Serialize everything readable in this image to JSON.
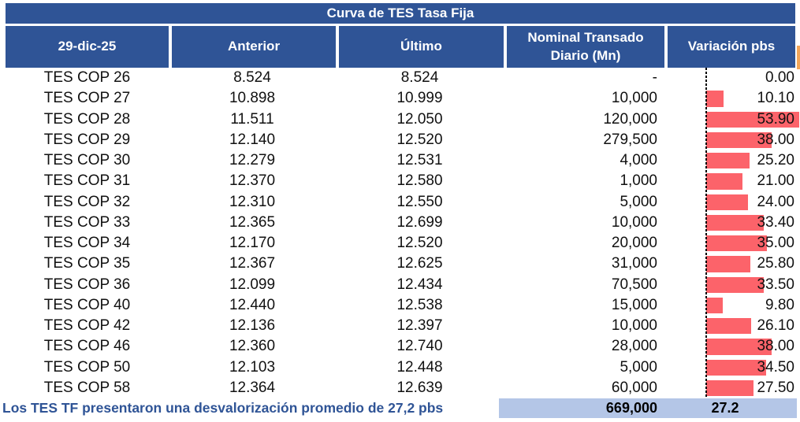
{
  "title": "Curva de TES Tasa Fija",
  "header": {
    "date": "29-dic-25",
    "anterior": "Anterior",
    "ultimo": "Último",
    "nominal_line1": "Nominal Transado",
    "nominal_line2": "Diario (Mn)",
    "variacion": "Variación pbs"
  },
  "rows": [
    {
      "label": "TES COP 26",
      "anterior": "8.524",
      "ultimo": "8.524",
      "nominal": "-",
      "variacion": "0.00",
      "variacion_value": 0.0
    },
    {
      "label": "TES COP 27",
      "anterior": "10.898",
      "ultimo": "10.999",
      "nominal": "10,000",
      "variacion": "10.10",
      "variacion_value": 10.1
    },
    {
      "label": "TES COP 28",
      "anterior": "11.511",
      "ultimo": "12.050",
      "nominal": "120,000",
      "variacion": "53.90",
      "variacion_value": 53.9
    },
    {
      "label": "TES COP 29",
      "anterior": "12.140",
      "ultimo": "12.520",
      "nominal": "279,500",
      "variacion": "38.00",
      "variacion_value": 38.0
    },
    {
      "label": "TES COP 30",
      "anterior": "12.279",
      "ultimo": "12.531",
      "nominal": "4,000",
      "variacion": "25.20",
      "variacion_value": 25.2
    },
    {
      "label": "TES COP 31",
      "anterior": "12.370",
      "ultimo": "12.580",
      "nominal": "1,000",
      "variacion": "21.00",
      "variacion_value": 21.0
    },
    {
      "label": "TES COP 32",
      "anterior": "12.310",
      "ultimo": "12.550",
      "nominal": "5,000",
      "variacion": "24.00",
      "variacion_value": 24.0
    },
    {
      "label": "TES COP 33",
      "anterior": "12.365",
      "ultimo": "12.699",
      "nominal": "10,000",
      "variacion": "33.40",
      "variacion_value": 33.4
    },
    {
      "label": "TES COP 34",
      "anterior": "12.170",
      "ultimo": "12.520",
      "nominal": "20,000",
      "variacion": "35.00",
      "variacion_value": 35.0
    },
    {
      "label": "TES COP 35",
      "anterior": "12.367",
      "ultimo": "12.625",
      "nominal": "31,000",
      "variacion": "25.80",
      "variacion_value": 25.8
    },
    {
      "label": "TES COP 36",
      "anterior": "12.099",
      "ultimo": "12.434",
      "nominal": "70,500",
      "variacion": "33.50",
      "variacion_value": 33.5
    },
    {
      "label": "TES COP 40",
      "anterior": "12.440",
      "ultimo": "12.538",
      "nominal": "15,000",
      "variacion": "9.80",
      "variacion_value": 9.8
    },
    {
      "label": "TES COP 42",
      "anterior": "12.136",
      "ultimo": "12.397",
      "nominal": "10,000",
      "variacion": "26.10",
      "variacion_value": 26.1
    },
    {
      "label": "TES COP 46",
      "anterior": "12.360",
      "ultimo": "12.740",
      "nominal": "28,000",
      "variacion": "38.00",
      "variacion_value": 38.0
    },
    {
      "label": "TES COP 50",
      "anterior": "12.103",
      "ultimo": "12.448",
      "nominal": "5,000",
      "variacion": "34.50",
      "variacion_value": 34.5
    },
    {
      "label": "TES COP 58",
      "anterior": "12.364",
      "ultimo": "12.639",
      "nominal": "60,000",
      "variacion": "27.50",
      "variacion_value": 27.5
    }
  ],
  "footer": {
    "note": "Los TES TF presentaron una desvalorización promedio de 27,2 pbs",
    "total_nominal": "669,000",
    "avg_variacion": "27.2"
  },
  "colors": {
    "header_bg": "#2F5496",
    "bar_red": "#FC636A",
    "footer_band": "#B4C6E7",
    "note_text": "#2F5496",
    "edge_sliver": "#F2A65A"
  },
  "chart_data": {
    "type": "table",
    "title": "Curva de TES Tasa Fija",
    "columns": [
      "29-dic-25",
      "Anterior",
      "Último",
      "Nominal Transado Diario (Mn)",
      "Variación pbs"
    ],
    "rows": [
      [
        "TES COP 26",
        8.524,
        8.524,
        null,
        0.0
      ],
      [
        "TES COP 27",
        10.898,
        10.999,
        10000,
        10.1
      ],
      [
        "TES COP 28",
        11.511,
        12.05,
        120000,
        53.9
      ],
      [
        "TES COP 29",
        12.14,
        12.52,
        279500,
        38.0
      ],
      [
        "TES COP 30",
        12.279,
        12.531,
        4000,
        25.2
      ],
      [
        "TES COP 31",
        12.37,
        12.58,
        1000,
        21.0
      ],
      [
        "TES COP 32",
        12.31,
        12.55,
        5000,
        24.0
      ],
      [
        "TES COP 33",
        12.365,
        12.699,
        10000,
        33.4
      ],
      [
        "TES COP 34",
        12.17,
        12.52,
        20000,
        35.0
      ],
      [
        "TES COP 35",
        12.367,
        12.625,
        31000,
        25.8
      ],
      [
        "TES COP 36",
        12.099,
        12.434,
        70500,
        33.5
      ],
      [
        "TES COP 40",
        12.44,
        12.538,
        15000,
        9.8
      ],
      [
        "TES COP 42",
        12.136,
        12.397,
        10000,
        26.1
      ],
      [
        "TES COP 46",
        12.36,
        12.74,
        28000,
        38.0
      ],
      [
        "TES COP 50",
        12.103,
        12.448,
        5000,
        34.5
      ],
      [
        "TES COP 58",
        12.364,
        12.639,
        60000,
        27.5
      ]
    ],
    "data_bars": {
      "column": "Variación pbs",
      "min": 0,
      "max": 53.9,
      "color": "#FC636A",
      "axis": "dashed-left"
    },
    "totals": {
      "nominal_transado": 669000,
      "variacion_promedio_pbs": 27.2
    }
  }
}
